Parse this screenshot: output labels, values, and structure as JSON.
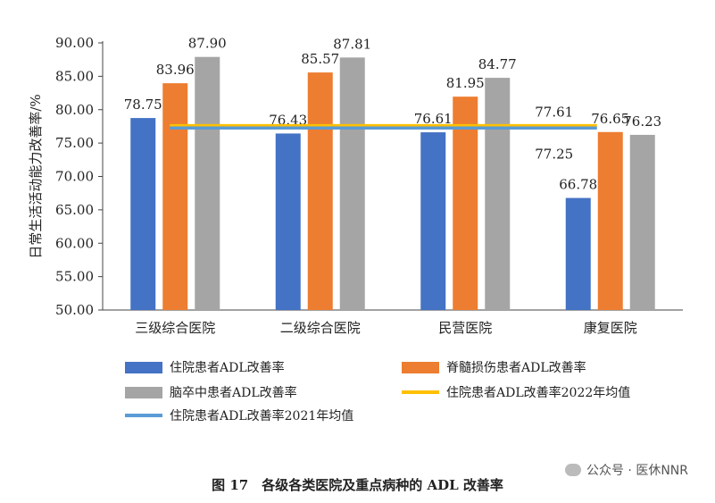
{
  "chart_data": {
    "type": "bar",
    "categories": [
      "三级综合医院",
      "二级综合医院",
      "民营医院",
      "康复医院"
    ],
    "series": [
      {
        "name": "住院患者ADL改善率",
        "values": [
          78.75,
          76.43,
          76.61,
          66.78
        ],
        "color": "#4472C4"
      },
      {
        "name": "脊髓损伤患者ADL改善率",
        "values": [
          83.96,
          85.57,
          81.95,
          76.65
        ],
        "color": "#ED7D31"
      },
      {
        "name": "脑卒中患者ADL改善率",
        "values": [
          87.9,
          87.81,
          84.77,
          76.23
        ],
        "color": "#A5A5A5"
      }
    ],
    "reference_lines": [
      {
        "name": "住院患者ADL改善率2022年均值",
        "value": 77.61,
        "label": "77.61",
        "color": "#FFC000"
      },
      {
        "name": "住院患者ADL改善率2021年均值",
        "value": 77.25,
        "label": "77.25",
        "color": "#5B9BD5"
      }
    ],
    "ylabel": "日常生活活动能力改善率/%",
    "ylim": [
      50,
      90
    ],
    "yticks": [
      "50.00",
      "55.00",
      "60.00",
      "65.00",
      "70.00",
      "75.00",
      "80.00",
      "85.00",
      "90.00"
    ],
    "legend_position": "bottom",
    "grid": false
  },
  "caption": "图 17　各级各类医院及重点病种的 ADL 改善率",
  "watermark": "公众号 · 医休NNR"
}
